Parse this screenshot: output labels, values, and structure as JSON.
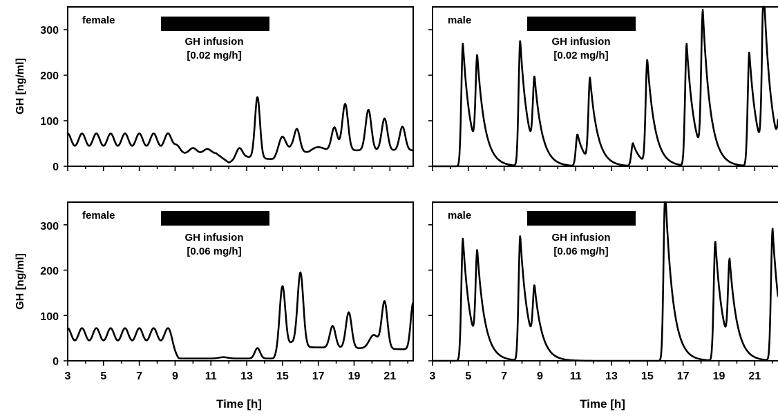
{
  "chart_data": [
    {
      "type": "line",
      "panel_label": "female",
      "annotation": [
        "GH infusion",
        "[0.02 mg/h]"
      ],
      "infusion_window": [
        8.3,
        14.2
      ],
      "ylabel": "GH [ng/ml]",
      "xlabel": "",
      "xlim": [
        3,
        22.3
      ],
      "ylim": [
        0,
        350
      ],
      "yticks": [
        0,
        100,
        200,
        300
      ],
      "peaks": [
        [
          3.0,
          72,
          0.2
        ],
        [
          3.8,
          72,
          0.2
        ],
        [
          4.6,
          72,
          0.2
        ],
        [
          5.4,
          72,
          0.2
        ],
        [
          6.2,
          72,
          0.2
        ],
        [
          7.0,
          72,
          0.2
        ],
        [
          7.8,
          72,
          0.2
        ],
        [
          8.6,
          72,
          0.2
        ],
        [
          9.1,
          45,
          0.18
        ],
        [
          10.0,
          40,
          0.2
        ],
        [
          10.8,
          38,
          0.2
        ],
        [
          12.6,
          40,
          0.18
        ],
        [
          13.6,
          152,
          0.14
        ],
        [
          15.0,
          65,
          0.2
        ],
        [
          15.8,
          82,
          0.16
        ],
        [
          17.0,
          42,
          0.4
        ],
        [
          17.9,
          85,
          0.16
        ],
        [
          18.5,
          137,
          0.16
        ],
        [
          19.8,
          124,
          0.16
        ],
        [
          20.7,
          105,
          0.16
        ],
        [
          21.7,
          87,
          0.16
        ]
      ],
      "baseline": [
        [
          3,
          35
        ],
        [
          8.6,
          35
        ],
        [
          9.0,
          28
        ],
        [
          11.3,
          28
        ],
        [
          12.0,
          8
        ],
        [
          12.5,
          15
        ],
        [
          13.0,
          20
        ],
        [
          14.5,
          15
        ],
        [
          15.5,
          40
        ],
        [
          16.5,
          25
        ],
        [
          18.0,
          35
        ],
        [
          22.3,
          35
        ]
      ]
    },
    {
      "type": "line",
      "panel_label": "male",
      "annotation": [
        "GH infusion",
        "[0.02 mg/h]"
      ],
      "infusion_window": [
        8.3,
        14.2
      ],
      "ylabel": "",
      "xlabel": "",
      "xlim": [
        3,
        22.3
      ],
      "ylim": [
        0,
        350
      ],
      "yticks": [
        0,
        100,
        200,
        300
      ],
      "peaks": [
        [
          4.7,
          270
        ],
        [
          5.5,
          205
        ],
        [
          7.9,
          276
        ],
        [
          8.7,
          157
        ],
        [
          11.1,
          70
        ],
        [
          11.8,
          182
        ],
        [
          14.2,
          50
        ],
        [
          15.0,
          228
        ],
        [
          17.2,
          268
        ],
        [
          18.1,
          312
        ],
        [
          20.7,
          250
        ],
        [
          21.5,
          360
        ],
        [
          22.4,
          80
        ]
      ],
      "baseline": []
    },
    {
      "type": "line",
      "panel_label": "female",
      "annotation": [
        "GH infusion",
        "[0.06 mg/h]"
      ],
      "infusion_window": [
        8.3,
        14.2
      ],
      "ylabel": "GH [ng/ml]",
      "xlabel": "Time [h]",
      "xlim": [
        3,
        22.3
      ],
      "ylim": [
        0,
        350
      ],
      "yticks": [
        0,
        100,
        200,
        300
      ],
      "xticks": [
        3,
        5,
        7,
        9,
        11,
        13,
        15,
        17,
        19,
        21
      ],
      "peaks": [
        [
          3.0,
          72,
          0.2
        ],
        [
          3.8,
          72,
          0.2
        ],
        [
          4.6,
          72,
          0.2
        ],
        [
          5.4,
          72,
          0.2
        ],
        [
          6.2,
          72,
          0.2
        ],
        [
          7.0,
          72,
          0.2
        ],
        [
          7.8,
          72,
          0.2
        ],
        [
          8.6,
          72,
          0.2
        ],
        [
          11.7,
          8,
          0.25
        ],
        [
          13.6,
          28,
          0.15
        ],
        [
          15.0,
          165,
          0.16
        ],
        [
          16.0,
          195,
          0.16
        ],
        [
          17.8,
          77,
          0.16
        ],
        [
          18.7,
          107,
          0.16
        ],
        [
          20.1,
          57,
          0.25
        ],
        [
          20.7,
          130,
          0.16
        ],
        [
          22.3,
          128,
          0.14
        ]
      ],
      "baseline": [
        [
          3,
          35
        ],
        [
          8.6,
          35
        ],
        [
          9.2,
          5
        ],
        [
          14.5,
          5
        ],
        [
          15.5,
          40
        ],
        [
          16.5,
          30
        ],
        [
          22.3,
          25
        ]
      ]
    },
    {
      "type": "line",
      "panel_label": "male",
      "annotation": [
        "GH infusion",
        "[0.06 mg/h]"
      ],
      "infusion_window": [
        8.3,
        14.2
      ],
      "ylabel": "",
      "xlabel": "Time [h]",
      "xlim": [
        3,
        22.3
      ],
      "ylim": [
        0,
        350
      ],
      "yticks": [
        0,
        100,
        200,
        300
      ],
      "xticks": [
        3,
        5,
        7,
        9,
        11,
        13,
        15,
        17,
        19,
        21
      ],
      "peaks": [
        [
          4.7,
          270
        ],
        [
          5.5,
          205
        ],
        [
          7.9,
          276
        ],
        [
          8.7,
          126
        ],
        [
          16.0,
          380
        ],
        [
          18.8,
          265
        ],
        [
          19.6,
          186
        ],
        [
          22.0,
          291
        ]
      ],
      "baseline": []
    }
  ]
}
